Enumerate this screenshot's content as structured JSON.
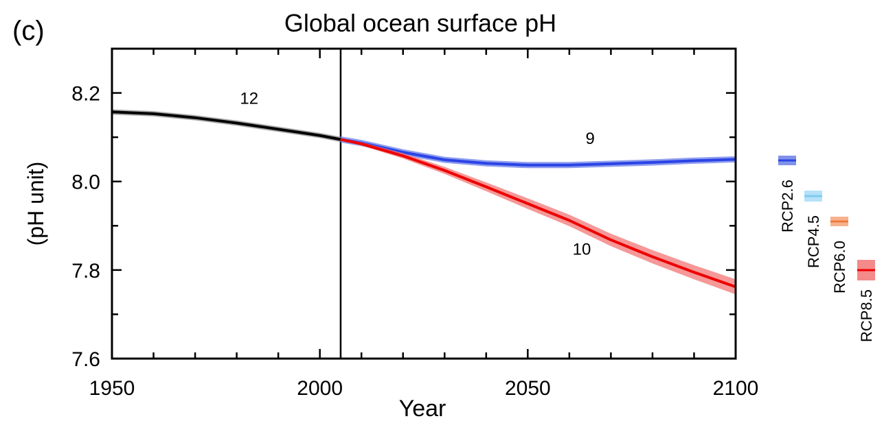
{
  "chart_data": {
    "type": "line",
    "panel_label": "(c)",
    "title": "Global ocean surface pH",
    "xlabel": "Year",
    "ylabel": "(pH unit)",
    "xlim": [
      1950,
      2100
    ],
    "ylim": [
      7.6,
      8.3
    ],
    "xticks": [
      1950,
      2000,
      2050,
      2100
    ],
    "yticks": [
      7.6,
      7.8,
      8.0,
      8.2
    ],
    "divider_year": 2005,
    "grid": false,
    "legend_position": "right",
    "series": [
      {
        "name": "historical",
        "color": "#000000",
        "band_color": "#8c8c8c",
        "model_count": "12",
        "x": [
          1950,
          1960,
          1970,
          1980,
          1990,
          2000,
          2005
        ],
        "y": [
          8.157,
          8.153,
          8.144,
          8.132,
          8.118,
          8.104,
          8.095
        ],
        "band": 0.006
      },
      {
        "name": "RCP2.6",
        "color": "#2b44e6",
        "band_color": "#6b7fe8",
        "model_count": "9",
        "x": [
          2005,
          2010,
          2020,
          2030,
          2040,
          2050,
          2060,
          2070,
          2080,
          2090,
          2100
        ],
        "y": [
          8.095,
          8.087,
          8.066,
          8.049,
          8.041,
          8.037,
          8.037,
          8.04,
          8.043,
          8.047,
          8.05
        ],
        "band": 0.007
      },
      {
        "name": "RCP8.5",
        "color": "#ee0000",
        "band_color": "#f27575",
        "model_count": "10",
        "x": [
          2005,
          2010,
          2020,
          2030,
          2040,
          2050,
          2060,
          2070,
          2080,
          2090,
          2100
        ],
        "y": [
          8.095,
          8.085,
          8.058,
          8.025,
          7.988,
          7.95,
          7.912,
          7.868,
          7.83,
          7.795,
          7.762
        ],
        "band": [
          0.002,
          0.004,
          0.006,
          0.008,
          0.01,
          0.012,
          0.013,
          0.014,
          0.015,
          0.016,
          0.017
        ]
      }
    ],
    "legend": [
      {
        "label": "RCP2.6",
        "color": "#2b44e6",
        "band_color": "#6b7fe8"
      },
      {
        "label": "RCP4.5",
        "color": "#7ecbf2",
        "band_color": "#a9dcf7"
      },
      {
        "label": "RCP6.0",
        "color": "#f07a3c",
        "band_color": "#f5a57a"
      },
      {
        "label": "RCP8.5",
        "color": "#ee0000",
        "band_color": "#f27575"
      }
    ]
  }
}
